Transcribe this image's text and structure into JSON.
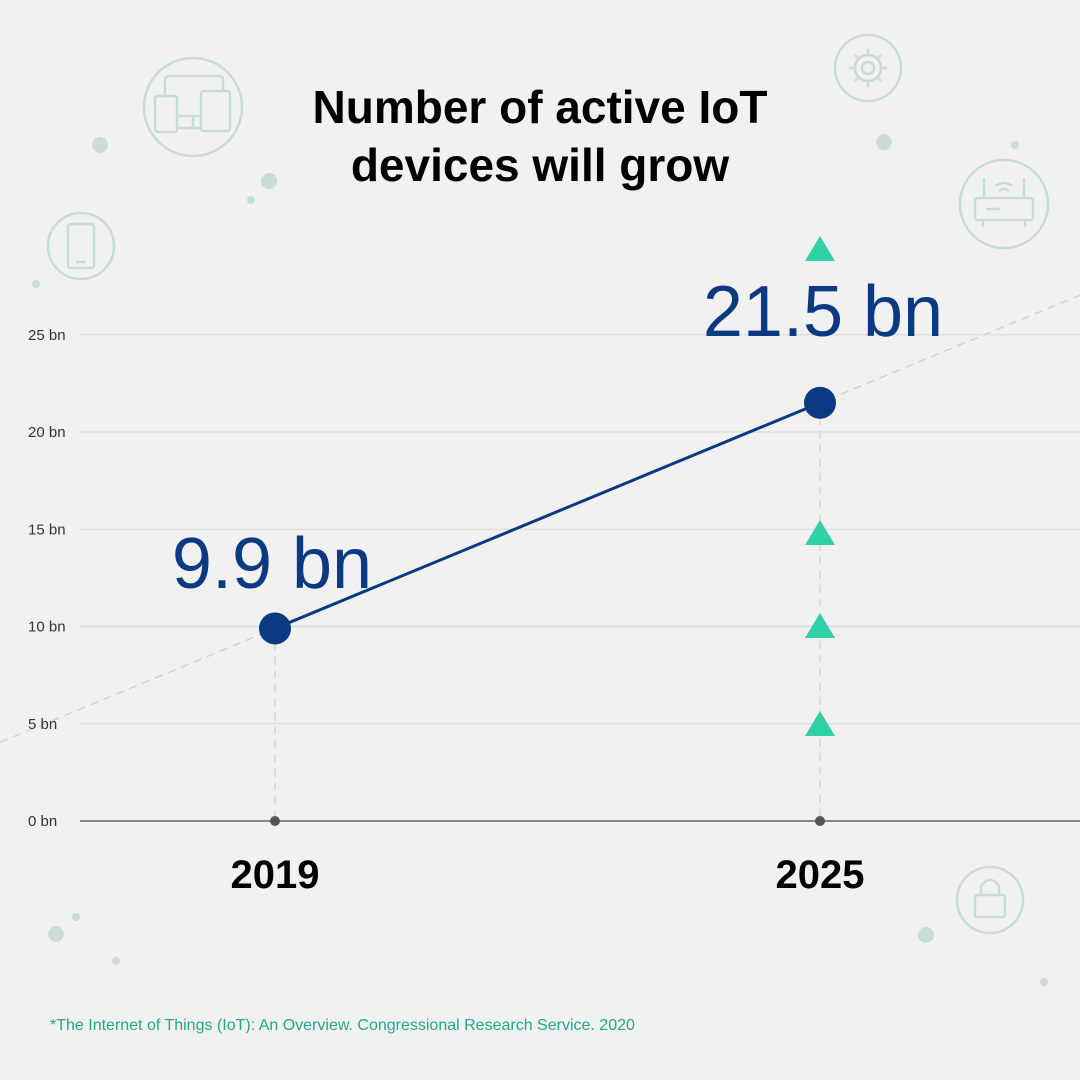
{
  "title_line1": "Number of active IoT",
  "title_line2": "devices will grow",
  "footnote": "*The Internet of Things (IoT): An Overview. Congressional Research Service. 2020",
  "colors": {
    "line": "#0b3a82",
    "marker": "#0b3a82",
    "value_label": "#0b3a82",
    "arrow": "#2fcfa8",
    "grid": "#dcdcdc",
    "axis": "#666666",
    "decor": "#c8dcd6",
    "footnote": "#1fa88c"
  },
  "icons": [
    "devices-icon",
    "gear-icon",
    "router-icon",
    "phone-icon",
    "lock-icon",
    "growth-arrow-icon"
  ],
  "chart_data": {
    "type": "line",
    "title": "Number of active IoT devices will grow",
    "categories": [
      "2019",
      "2025"
    ],
    "series": [
      {
        "values": [
          9.9,
          21.5
        ],
        "labels": [
          "9.9 bn",
          "21.5 bn"
        ]
      }
    ],
    "ytick_labels": [
      "0 bn",
      "5 bn",
      "10 bn",
      "15 bn",
      "20 bn",
      "25 bn"
    ],
    "yticks": [
      0,
      5,
      10,
      15,
      20,
      25
    ],
    "ylim": [
      0,
      25
    ],
    "xlabel": "",
    "ylabel": "",
    "grid": true,
    "legend": "none"
  }
}
